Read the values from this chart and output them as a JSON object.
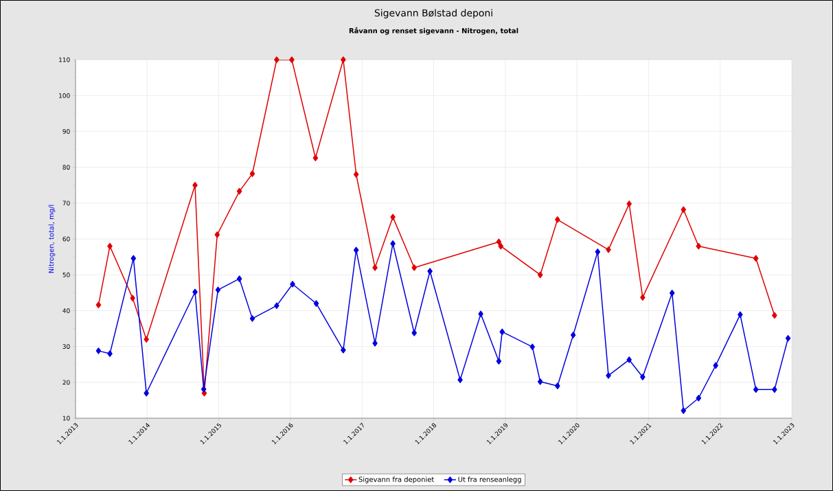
{
  "chart_data": {
    "type": "line",
    "title": "Sigevann Bølstad deponi",
    "subtitle": "Råvann og renset sigevann - Nitrogen, total",
    "ylabel": "Nitrogen, total, mg/l",
    "xlim": [
      "2013-01-01",
      "2023-01-01"
    ],
    "xticks": [
      {
        "value": "2013-01-01",
        "label": "1.1.2013"
      },
      {
        "value": "2014-01-01",
        "label": "1.1.2014"
      },
      {
        "value": "2015-01-01",
        "label": "1.1.2015"
      },
      {
        "value": "2016-01-01",
        "label": "1.1.2016"
      },
      {
        "value": "2017-01-01",
        "label": "1.1.2017"
      },
      {
        "value": "2018-01-01",
        "label": "1.1.2018"
      },
      {
        "value": "2019-01-01",
        "label": "1.1.2019"
      },
      {
        "value": "2020-01-01",
        "label": "1.1.2020"
      },
      {
        "value": "2021-01-01",
        "label": "1.1.2021"
      },
      {
        "value": "2022-01-01",
        "label": "1.1.2022"
      },
      {
        "value": "2023-01-01",
        "label": "1.1.2023"
      }
    ],
    "ylim": [
      10,
      110
    ],
    "yticks": [
      10,
      20,
      30,
      40,
      50,
      60,
      70,
      80,
      90,
      100,
      110
    ],
    "grid": true,
    "legend": "bottom",
    "marker": "diamond",
    "line_style": "solid",
    "series": [
      {
        "name": "Sigevann fra deponiet",
        "color": "#e00000",
        "x": [
          "2013-04-28",
          "2013-06-25",
          "2013-10-19",
          "2013-12-28",
          "2014-09-02",
          "2014-10-19",
          "2014-12-24",
          "2015-04-16",
          "2015-06-21",
          "2015-10-23",
          "2016-01-08",
          "2016-05-08",
          "2016-09-27",
          "2016-12-02",
          "2017-03-08",
          "2017-06-07",
          "2017-09-24",
          "2018-11-29",
          "2018-12-09",
          "2019-06-28",
          "2019-09-24",
          "2020-06-10",
          "2020-09-24",
          "2020-12-02",
          "2021-06-28",
          "2021-09-13",
          "2022-07-02",
          "2022-10-05"
        ],
        "values": [
          41.6,
          58.0,
          43.5,
          32,
          75,
          17,
          61.2,
          73.3,
          78.2,
          110,
          110,
          82.6,
          110,
          78,
          52,
          66.1,
          52,
          59.2,
          58,
          50,
          65.4,
          57,
          69.8,
          43.7,
          68.2,
          58,
          54.6,
          38.7
        ]
      },
      {
        "name": "Ut fra renseanlegg",
        "color": "#0000e0",
        "x": [
          "2013-04-28",
          "2013-06-25",
          "2013-10-23",
          "2013-12-28",
          "2014-09-02",
          "2014-10-16",
          "2014-12-28",
          "2015-04-16",
          "2015-06-21",
          "2015-10-23",
          "2016-01-12",
          "2016-05-12",
          "2016-09-27",
          "2016-12-02",
          "2017-03-08",
          "2017-06-07",
          "2017-09-24",
          "2017-12-13",
          "2018-05-16",
          "2018-08-29",
          "2018-11-29",
          "2018-12-16",
          "2019-05-19",
          "2019-06-28",
          "2019-09-24",
          "2019-12-13",
          "2020-04-16",
          "2020-06-10",
          "2020-09-24",
          "2020-12-02",
          "2021-05-01",
          "2021-06-28",
          "2021-09-13",
          "2021-12-09",
          "2022-04-13",
          "2022-07-02",
          "2022-10-05",
          "2022-12-13"
        ],
        "values": [
          28.8,
          28.0,
          54.6,
          17,
          45.2,
          18.1,
          45.8,
          48.9,
          37.8,
          41.4,
          47.4,
          42.0,
          29.0,
          56.9,
          30.9,
          58.7,
          33.8,
          51.0,
          20.7,
          39.1,
          25.9,
          34.1,
          29.9,
          20.2,
          19.0,
          33.2,
          56.4,
          21.9,
          26.3,
          21.5,
          44.9,
          12.1,
          15.6,
          24.7,
          38.9,
          18.0,
          18.0,
          32.3
        ]
      }
    ]
  }
}
